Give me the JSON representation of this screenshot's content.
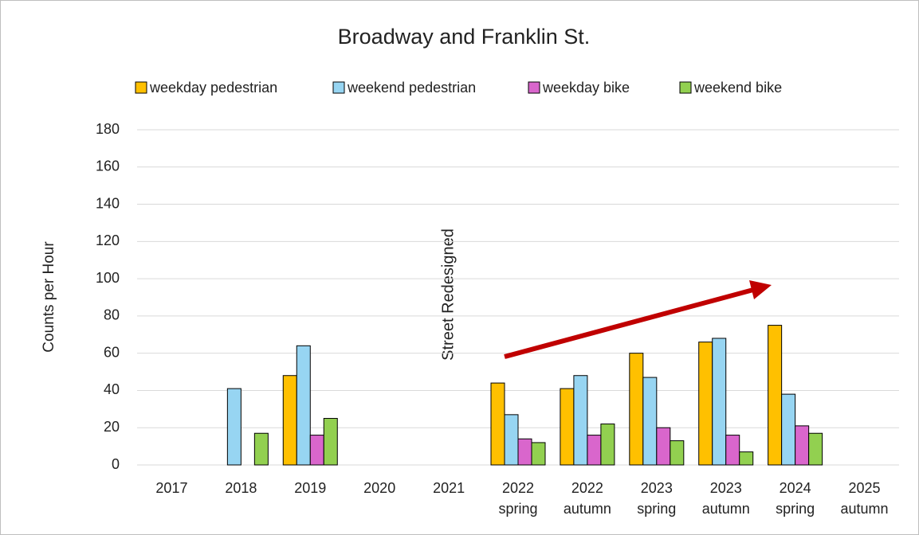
{
  "chart_data": {
    "type": "bar",
    "title": "Broadway and Franklin St.",
    "y_label": "Counts per Hour",
    "annotation": "Street Redesigned",
    "categories": [
      "2017",
      "2018",
      "2019",
      "2020",
      "2021",
      "2022\nspring",
      "2022\nautumn",
      "2023\nspring",
      "2023\nautumn",
      "2024\nspring",
      "2025\nautumn"
    ],
    "series": [
      {
        "name": "weekday pedestrian",
        "color": "#ffc000",
        "values": [
          null,
          null,
          48,
          null,
          null,
          44,
          41,
          60,
          66,
          75,
          null
        ]
      },
      {
        "name": "weekend pedestrian",
        "color": "#97d5f2",
        "values": [
          null,
          41,
          64,
          null,
          null,
          27,
          48,
          47,
          68,
          38,
          null
        ]
      },
      {
        "name": "weekday bike",
        "color": "#d966cc",
        "values": [
          null,
          null,
          16,
          null,
          null,
          14,
          16,
          20,
          16,
          21,
          null
        ]
      },
      {
        "name": "weekend bike",
        "color": "#92d050",
        "values": [
          null,
          17,
          25,
          null,
          null,
          12,
          22,
          13,
          7,
          17,
          null
        ]
      }
    ],
    "ylim": [
      0,
      180
    ],
    "yticks": [
      0,
      20,
      40,
      60,
      80,
      100,
      120,
      140,
      160,
      180
    ],
    "grid": true
  }
}
